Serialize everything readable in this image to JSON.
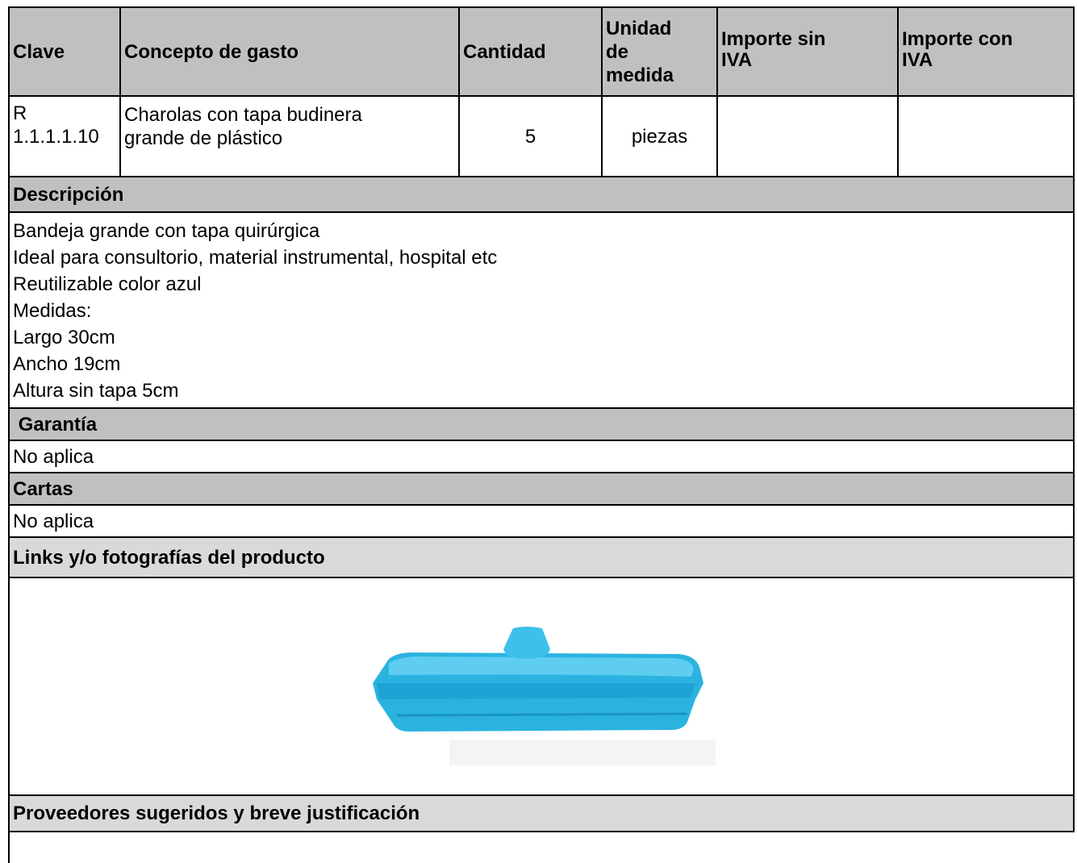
{
  "table": {
    "headers": [
      "Clave",
      "Concepto de gasto",
      "Cantidad",
      "Unidad de medida",
      "Importe sin IVA",
      "Importe con IVA"
    ],
    "row": [
      "R 1.1.1.1.10",
      "Charolas con tapa budinera grande de plástico",
      "5",
      "piezas",
      "",
      ""
    ]
  },
  "sections": {
    "description_title": "Descripción",
    "description_lines": [
      "Bandeja grande con tapa quirúrgica",
      "Ideal para consultorio, material instrumental, hospital etc",
      "Reutilizable color azul",
      "Medidas:",
      "Largo 30cm",
      "Ancho 19cm",
      "Altura sin tapa 5cm"
    ],
    "guarantee_title": " Garantía",
    "guarantee_text": "No aplica",
    "letters_title": "Cartas",
    "letters_text": "No aplica",
    "links_title": "Links y/o fotografías del producto",
    "suppliers_title": "Proveedores sugeridos y breve justificación"
  }
}
